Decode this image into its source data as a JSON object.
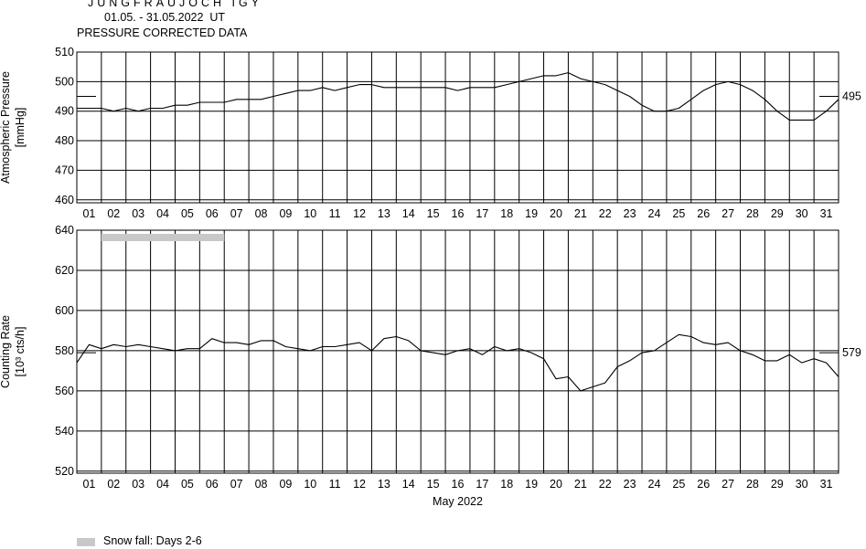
{
  "header": {
    "station": "JUNGFRAUJOCH IGY",
    "period": "01.05. - 31.05.2022  UT",
    "subtitle": "PRESSURE CORRECTED DATA"
  },
  "legend": {
    "snow_label": "Snow fall: Days 2-6",
    "snow_color": "#c8c8c8"
  },
  "chart_data": [
    {
      "type": "line",
      "title": "",
      "ylabel": "Atmospheric Pressure",
      "yunit": "[mmHg]",
      "ylim": [
        459,
        510
      ],
      "yticks": [
        460,
        470,
        480,
        490,
        500,
        510
      ],
      "x_categories": [
        "01",
        "02",
        "03",
        "04",
        "05",
        "06",
        "07",
        "08",
        "09",
        "10",
        "11",
        "12",
        "13",
        "14",
        "15",
        "16",
        "17",
        "18",
        "19",
        "20",
        "21",
        "22",
        "23",
        "24",
        "25",
        "26",
        "27",
        "28",
        "29",
        "30",
        "31"
      ],
      "reference_value": "495",
      "reference_level": 495,
      "grid": true,
      "series": [
        {
          "x_days": [
            0,
            0.5,
            1,
            1.5,
            2,
            2.5,
            3,
            3.5,
            4,
            4.5,
            5,
            5.5,
            6,
            6.5,
            7,
            7.5,
            8,
            8.5,
            9,
            9.5,
            10,
            10.5,
            11,
            11.5,
            12,
            12.5,
            13,
            13.5,
            14,
            14.5,
            15,
            15.5,
            16,
            16.5,
            17,
            17.5,
            18,
            18.5,
            19,
            19.5,
            20,
            20.5,
            21,
            21.5,
            22,
            22.5,
            23,
            23.5,
            24,
            24.5,
            25,
            25.5,
            26,
            26.5,
            27,
            27.5,
            28,
            28.5,
            29,
            29.5,
            30,
            30.5,
            31
          ],
          "values": [
            491,
            491,
            491,
            490,
            491,
            490,
            491,
            491,
            492,
            492,
            493,
            493,
            493,
            494,
            494,
            494,
            495,
            496,
            497,
            497,
            498,
            497,
            498,
            499,
            499,
            498,
            498,
            498,
            498,
            498,
            498,
            497,
            498,
            498,
            498,
            499,
            500,
            501,
            502,
            502,
            503,
            501,
            500,
            499,
            497,
            495,
            492,
            490,
            490,
            491,
            494,
            497,
            499,
            500,
            499,
            497,
            494,
            490,
            487,
            487,
            487,
            490,
            494
          ]
        }
      ]
    },
    {
      "type": "line",
      "title": "",
      "ylabel": "Counting Rate",
      "yunit": "[10³ cts/h]",
      "ylim": [
        519,
        640
      ],
      "yticks": [
        520,
        540,
        560,
        580,
        600,
        620,
        640
      ],
      "x_categories": [
        "01",
        "02",
        "03",
        "04",
        "05",
        "06",
        "07",
        "08",
        "09",
        "10",
        "11",
        "12",
        "13",
        "14",
        "15",
        "16",
        "17",
        "18",
        "19",
        "20",
        "21",
        "22",
        "23",
        "24",
        "25",
        "26",
        "27",
        "28",
        "29",
        "30",
        "31"
      ],
      "xlabel": "May 2022",
      "reference_value": "579",
      "reference_level": 579,
      "snowfall_days": [
        2,
        6
      ],
      "grid": true,
      "series": [
        {
          "x_days": [
            0,
            0.5,
            1,
            1.5,
            2,
            2.5,
            3,
            3.5,
            4,
            4.5,
            5,
            5.5,
            6,
            6.5,
            7,
            7.5,
            8,
            8.5,
            9,
            9.5,
            10,
            10.5,
            11,
            11.5,
            12,
            12.5,
            13,
            13.5,
            14,
            14.5,
            15,
            15.5,
            16,
            16.5,
            17,
            17.5,
            18,
            18.5,
            19,
            19.5,
            20,
            20.5,
            21,
            21.5,
            22,
            22.5,
            23,
            23.5,
            24,
            24.5,
            25,
            25.5,
            26,
            26.5,
            27,
            27.5,
            28,
            28.5,
            29,
            29.5,
            30,
            30.5,
            31
          ],
          "values": [
            574,
            583,
            581,
            583,
            582,
            583,
            582,
            581,
            580,
            581,
            581,
            586,
            584,
            584,
            583,
            585,
            585,
            582,
            581,
            580,
            582,
            582,
            583,
            584,
            580,
            586,
            587,
            585,
            580,
            579,
            578,
            580,
            581,
            578,
            582,
            580,
            581,
            579,
            576,
            566,
            567,
            560,
            562,
            564,
            572,
            575,
            579,
            580,
            584,
            588,
            587,
            584,
            583,
            584,
            580,
            578,
            575,
            575,
            578,
            574,
            576,
            574,
            567
          ]
        }
      ]
    }
  ]
}
